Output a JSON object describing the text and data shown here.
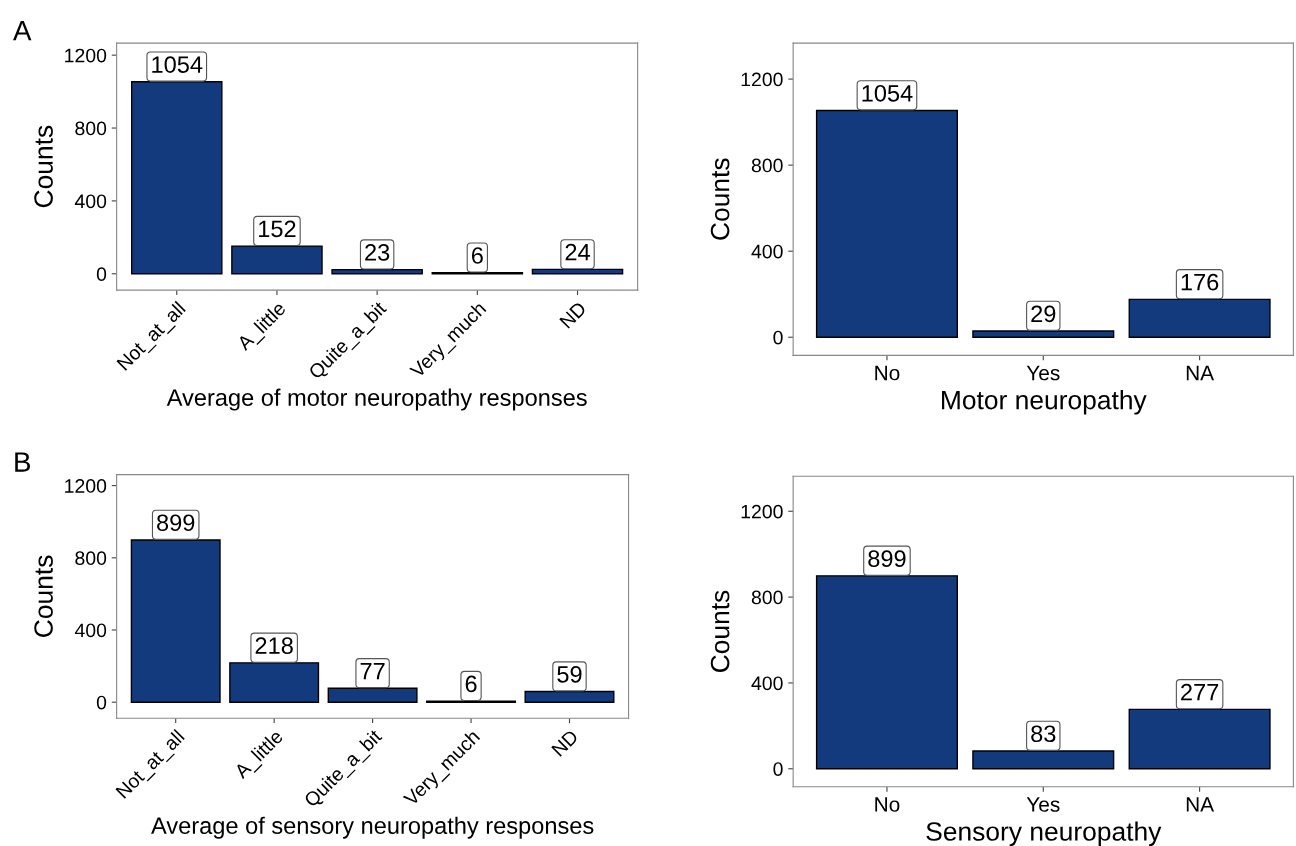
{
  "chart_data": [
    {
      "type": "bar",
      "annotations": [
        "A"
      ],
      "xlabel": "Average of motor neuropathy responses",
      "ylabel": "Counts",
      "categories": [
        "Not_at_all",
        "A_little",
        "Quite_a_bit",
        "Very_much",
        "ND"
      ],
      "values": [
        1054,
        152,
        23,
        6,
        24
      ],
      "color": "#133a7c",
      "ylim": [
        -90,
        1266
      ],
      "yticks": [
        0,
        400,
        800,
        1200
      ],
      "data_labels": true,
      "grid": false,
      "legend": false
    },
    {
      "type": "bar",
      "xlabel": "Motor neuropathy",
      "ylabel": "Counts",
      "categories": [
        "No",
        "Yes",
        "NA"
      ],
      "values": [
        1054,
        29,
        176
      ],
      "color": "#133a7c",
      "ylim": [
        -84,
        1367
      ],
      "yticks": [
        0,
        400,
        800,
        1200
      ],
      "data_labels": true,
      "grid": false,
      "legend": false
    },
    {
      "type": "bar",
      "annotations": [
        "B"
      ],
      "xlabel": "Average of sensory neuropathy responses",
      "ylabel": "Counts",
      "categories": [
        "Not_at_all",
        "A_little",
        "Quite_a_bit",
        "Very_much",
        "ND"
      ],
      "values": [
        899,
        218,
        77,
        6,
        59
      ],
      "color": "#133a7c",
      "ylim": [
        -89,
        1261
      ],
      "yticks": [
        0,
        400,
        800,
        1200
      ],
      "data_labels": true,
      "grid": false,
      "legend": false
    },
    {
      "type": "bar",
      "xlabel": "Sensory neuropathy",
      "ylabel": "Counts",
      "categories": [
        "No",
        "Yes",
        "NA"
      ],
      "values": [
        899,
        83,
        277
      ],
      "color": "#133a7c",
      "ylim": [
        -84,
        1363
      ],
      "yticks": [
        0,
        400,
        800,
        1200
      ],
      "data_labels": true,
      "grid": false,
      "legend": false
    }
  ]
}
